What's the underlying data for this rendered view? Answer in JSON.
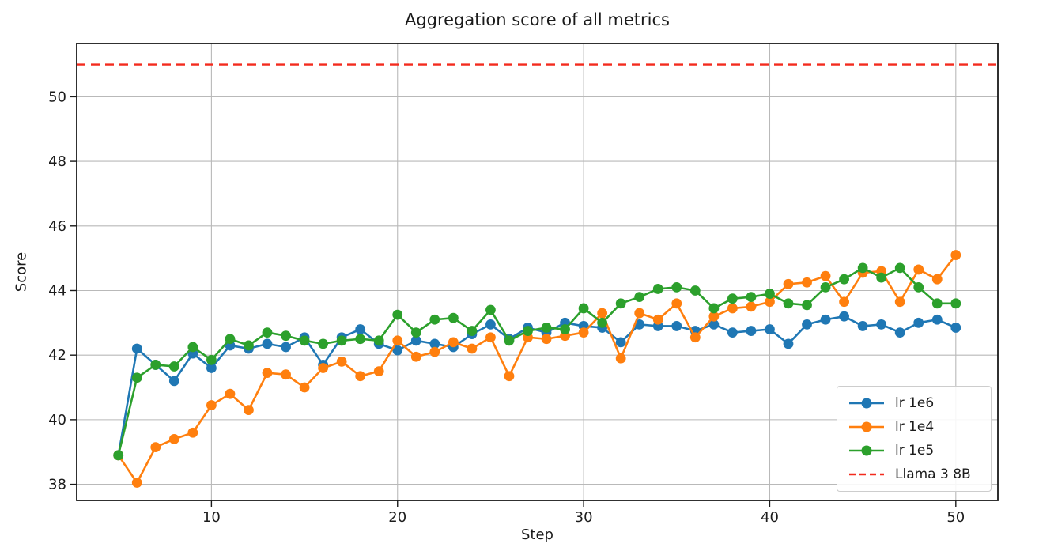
{
  "figure": {
    "title": "Aggregation score of all metrics",
    "x_axis_label": "Step",
    "y_axis_label": "Score"
  },
  "chart_data": {
    "type": "line",
    "title": "Aggregation score of all metrics",
    "xlabel": "Step",
    "ylabel": "Score",
    "grid": true,
    "legend_position": "lower right",
    "xticks": [
      10,
      20,
      30,
      40,
      50
    ],
    "yticks": [
      38,
      40,
      42,
      44,
      46,
      48,
      50
    ],
    "xlim": [
      2.76,
      52.26
    ],
    "ylim": [
      37.5,
      51.65
    ],
    "x": [
      5,
      6,
      7,
      8,
      9,
      10,
      11,
      12,
      13,
      14,
      15,
      16,
      17,
      18,
      19,
      20,
      21,
      22,
      23,
      24,
      25,
      26,
      27,
      28,
      29,
      30,
      31,
      32,
      33,
      34,
      35,
      36,
      37,
      38,
      39,
      40,
      41,
      42,
      43,
      44,
      45,
      46,
      47,
      48,
      49,
      50
    ],
    "series": [
      {
        "name": "lr 1e6",
        "color": "#1f77b4",
        "marker": "circle",
        "line_style": "solid",
        "values": [
          38.9,
          42.2,
          41.7,
          41.2,
          42.05,
          41.6,
          42.3,
          42.2,
          42.35,
          42.25,
          42.55,
          41.7,
          42.55,
          42.8,
          42.35,
          42.15,
          42.45,
          42.35,
          42.25,
          42.65,
          42.95,
          42.5,
          42.85,
          42.7,
          43.0,
          42.9,
          42.85,
          42.4,
          42.95,
          42.9,
          42.9,
          42.75,
          42.95,
          42.7,
          42.75,
          42.8,
          42.35,
          42.95,
          43.1,
          43.2,
          42.9,
          42.95,
          42.7,
          43.0,
          43.1,
          42.85
        ]
      },
      {
        "name": "lr 1e4",
        "color": "#ff7f0e",
        "marker": "circle",
        "line_style": "solid",
        "values": [
          38.9,
          38.05,
          39.15,
          39.4,
          39.6,
          40.45,
          40.8,
          40.3,
          41.45,
          41.4,
          41.0,
          41.6,
          41.8,
          41.35,
          41.5,
          42.45,
          41.95,
          42.1,
          42.4,
          42.2,
          42.55,
          41.35,
          42.55,
          42.5,
          42.6,
          42.7,
          43.3,
          41.9,
          43.3,
          43.1,
          43.6,
          42.55,
          43.2,
          43.45,
          43.5,
          43.65,
          44.2,
          44.25,
          44.45,
          43.65,
          44.55,
          44.6,
          43.65,
          44.65,
          44.35,
          45.1
        ]
      },
      {
        "name": "lr 1e5",
        "color": "#2ca02c",
        "marker": "circle",
        "line_style": "solid",
        "values": [
          38.9,
          41.3,
          41.7,
          41.65,
          42.25,
          41.85,
          42.5,
          42.3,
          42.7,
          42.6,
          42.45,
          42.35,
          42.45,
          42.5,
          42.45,
          43.25,
          42.7,
          43.1,
          43.15,
          42.75,
          43.4,
          42.45,
          42.75,
          42.85,
          42.8,
          43.45,
          43.0,
          43.6,
          43.8,
          44.05,
          44.1,
          44.0,
          43.45,
          43.75,
          43.8,
          43.9,
          43.6,
          43.55,
          44.1,
          44.35,
          44.7,
          44.4,
          44.7,
          44.1,
          43.6,
          43.6
        ]
      },
      {
        "name": "Llama 3 8B",
        "color": "#f32b1e",
        "marker": "none",
        "line_style": "dashed",
        "constant_value": 51.0
      }
    ]
  }
}
